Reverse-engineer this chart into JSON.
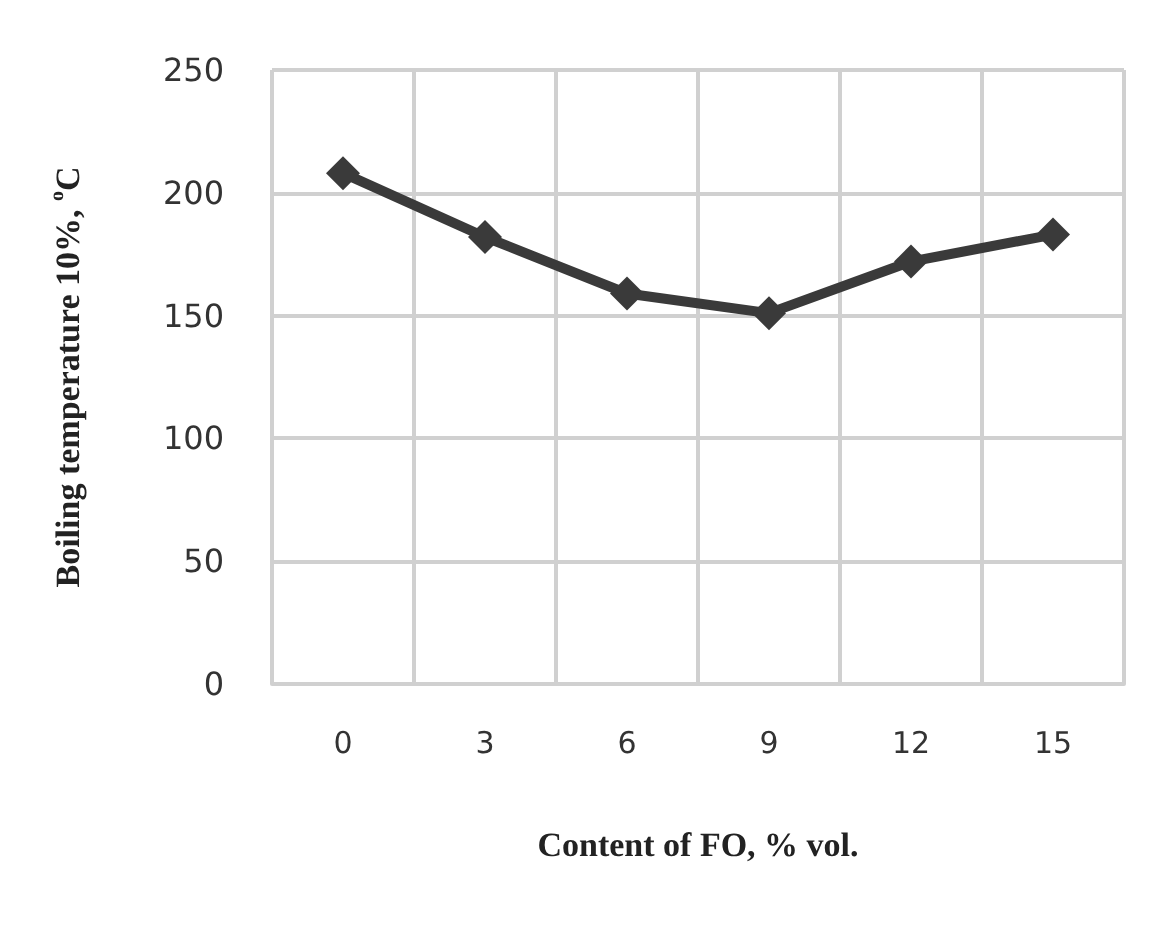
{
  "chart_data": {
    "type": "line",
    "xlabel": "Content of FO, % vol.",
    "ylabel": "Boiling temperature 10%, $^{o}$C",
    "categories": [
      "0",
      "3",
      "6",
      "9",
      "12",
      "15"
    ],
    "series": [
      {
        "color": "#3a3a3a",
        "values": [
          208,
          182,
          159,
          151,
          172,
          183
        ]
      }
    ],
    "ylim": [
      0,
      250
    ],
    "yticks": [
      0,
      50,
      100,
      150,
      200,
      250
    ],
    "grid": true,
    "marker": "diamond",
    "line_style": "solid"
  }
}
